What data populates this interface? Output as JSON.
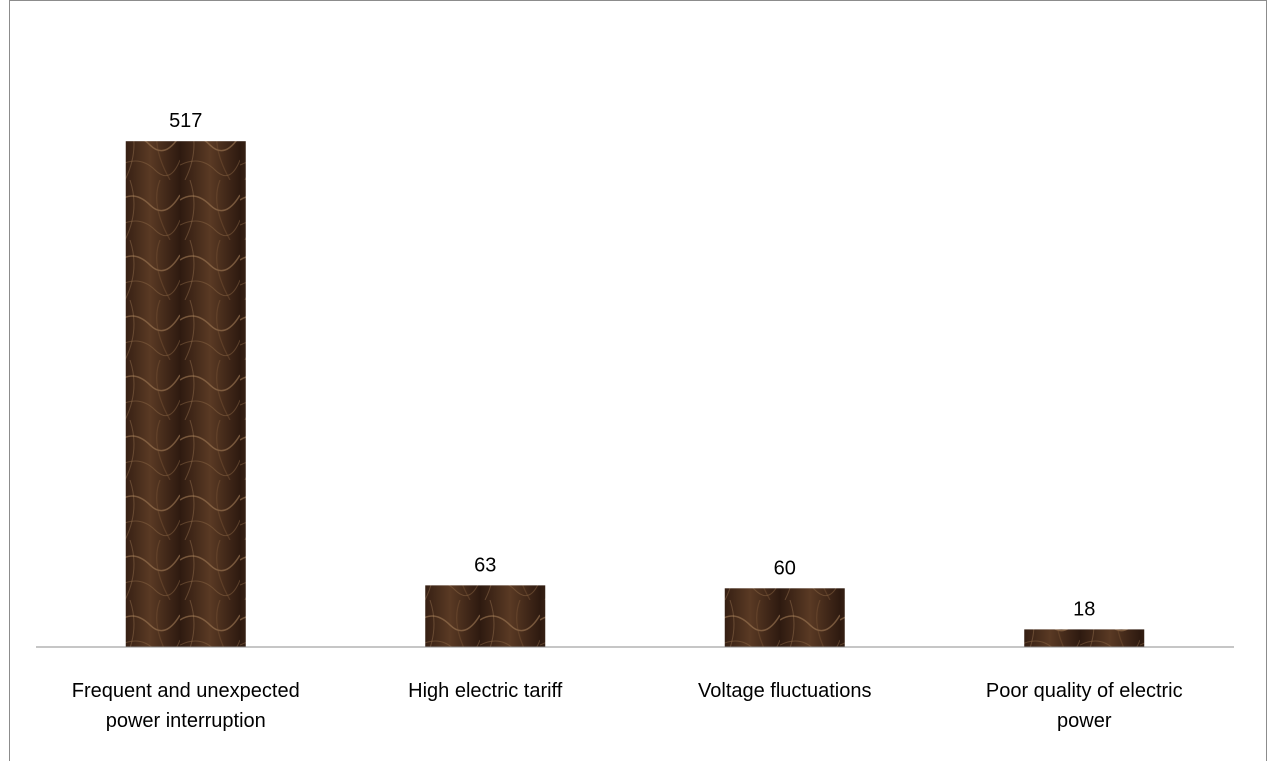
{
  "chart_data": {
    "type": "bar",
    "categories": [
      [
        "Frequent and unexpected",
        "power interruption"
      ],
      [
        "High electric tariff"
      ],
      [
        "Voltage fluctuations"
      ],
      [
        "Poor quality of electric",
        "power"
      ]
    ],
    "values": [
      517,
      63,
      60,
      18
    ],
    "title": "",
    "xlabel": "",
    "ylabel": "",
    "ylim": [
      0,
      600
    ],
    "grid": false,
    "legend": "none",
    "bar_color": "#4a2e1c",
    "bar_highlight": "#a07a55",
    "axis_color": "#8c8c8c"
  }
}
